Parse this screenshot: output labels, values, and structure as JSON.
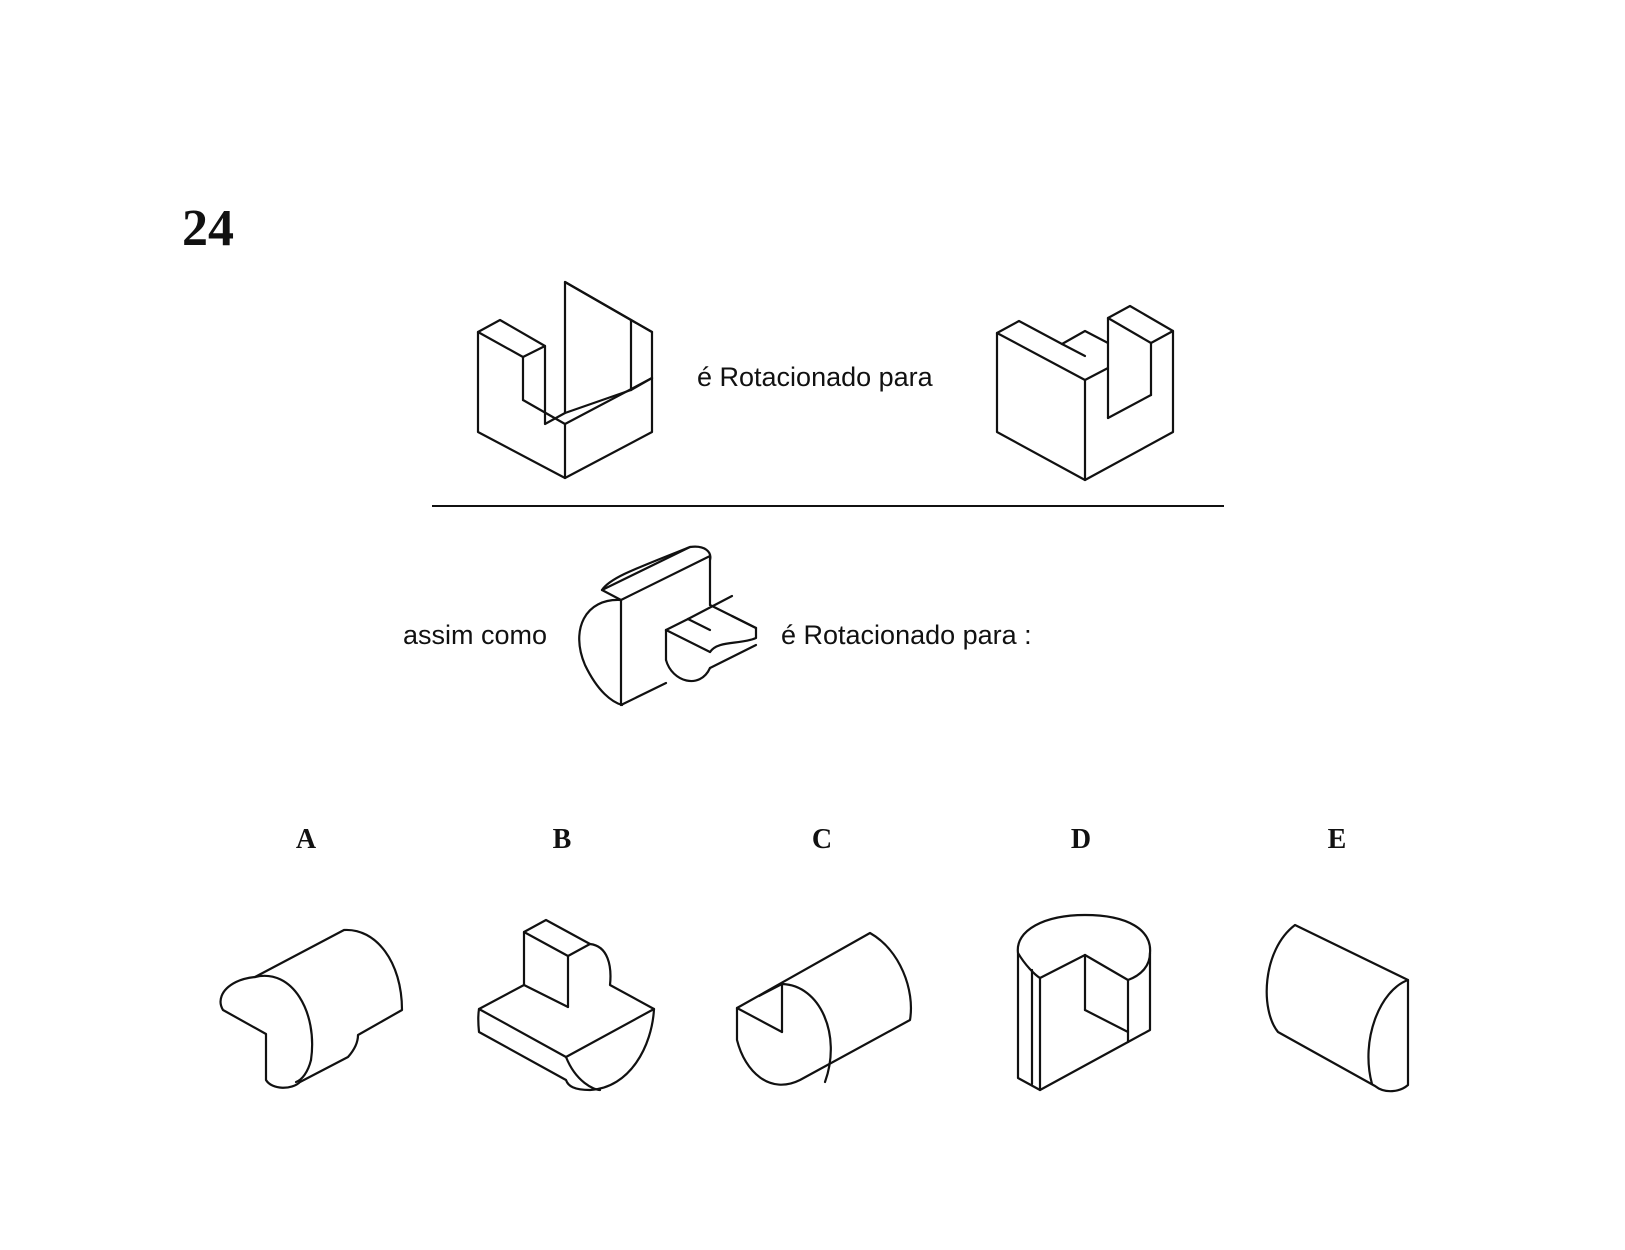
{
  "question": {
    "number": "24"
  },
  "example": {
    "relation_text": "é Rotacionado para"
  },
  "problem": {
    "prefix_text": "assim como",
    "relation_text": "é Rotacionado para :"
  },
  "options": [
    {
      "label": "A"
    },
    {
      "label": "B"
    },
    {
      "label": "C"
    },
    {
      "label": "D"
    },
    {
      "label": "E"
    }
  ]
}
